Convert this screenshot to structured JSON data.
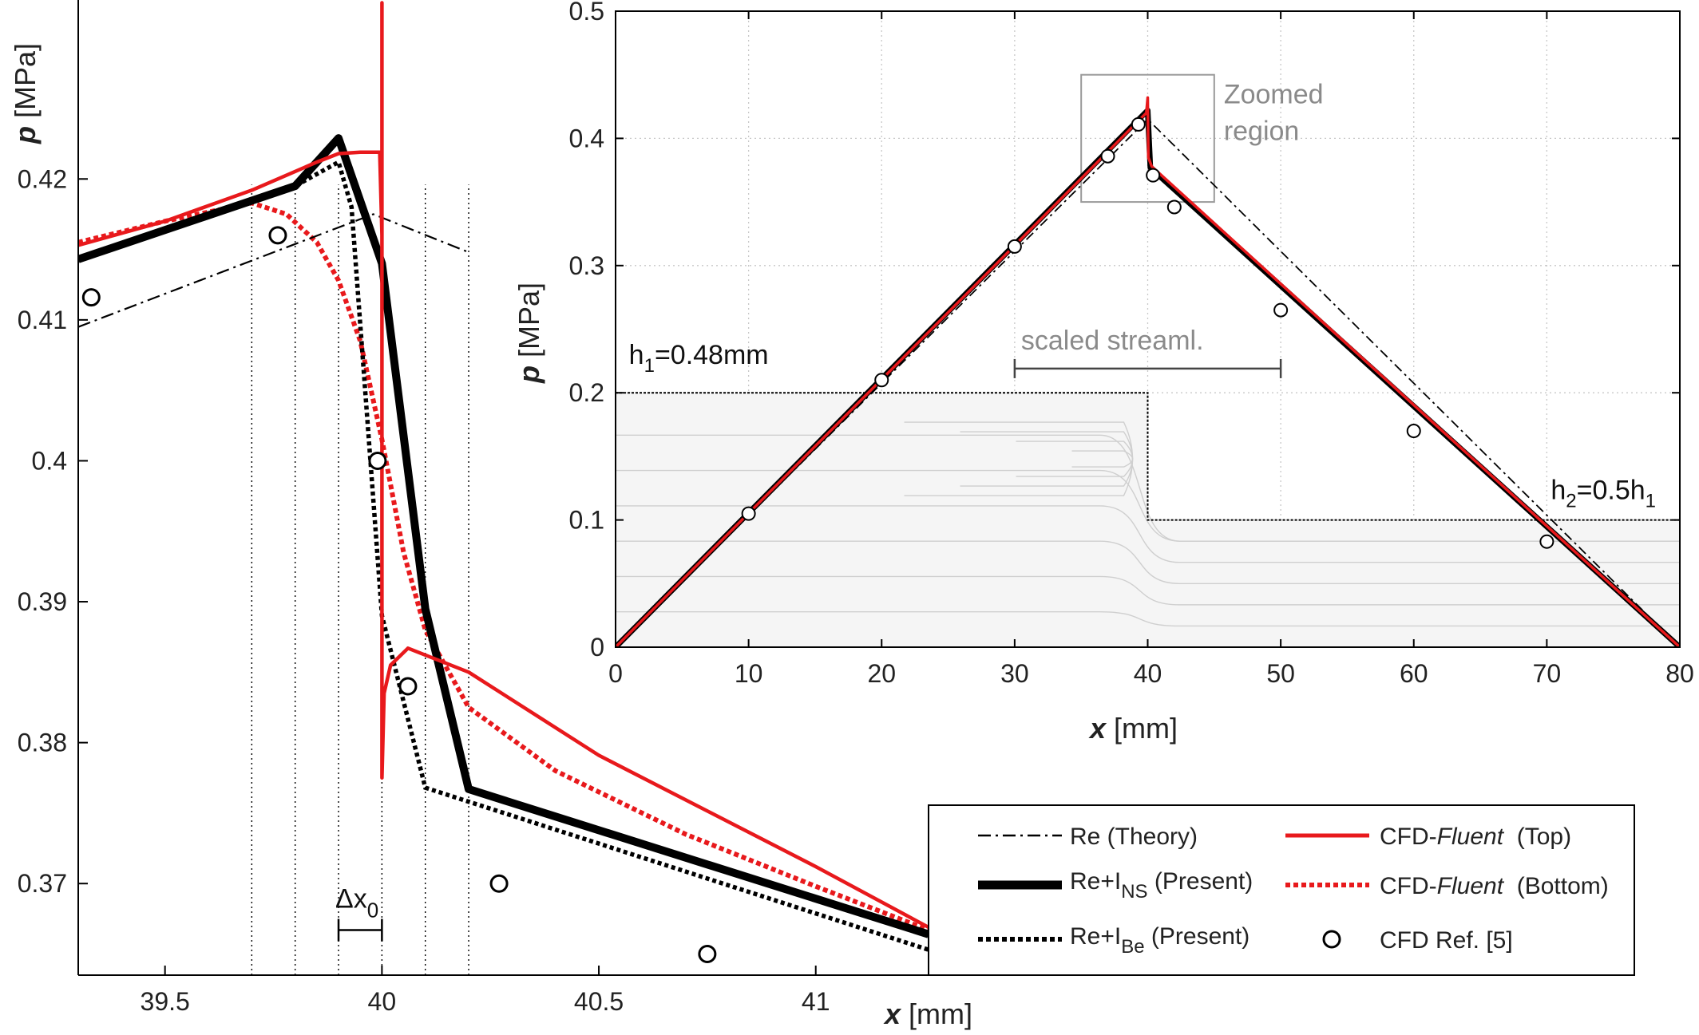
{
  "chart_data": [
    {
      "type": "line",
      "name": "main",
      "xlabel_var": "x",
      "xlabel_unit": " [mm]",
      "ylabel_var": "p",
      "ylabel_unit": " [MPa]",
      "xlim": [
        39.3,
        41.26
      ],
      "ylim": [
        0.3635,
        0.4327
      ],
      "xticks": [
        39.5,
        40,
        40.5,
        41
      ],
      "xtick_labels": [
        "39.5",
        "40",
        "40.5",
        "41"
      ],
      "yticks": [
        0.37,
        0.38,
        0.39,
        0.4,
        0.41,
        0.42
      ],
      "ytick_labels": [
        "0.37",
        "0.38",
        "0.39",
        "0.4",
        "0.41",
        "0.42"
      ],
      "dotted_vlines_x": [
        39.7,
        39.8,
        39.9,
        40.0,
        40.1,
        40.2
      ],
      "annotation": {
        "base": "Δx",
        "sub": "0",
        "from_x": 39.9,
        "to_x": 40.0,
        "y": 0.3667
      },
      "series": [
        {
          "key": "re_theory",
          "x": [
            39.3,
            39.98,
            40.2
          ],
          "y": [
            0.4095,
            0.4175,
            0.4148
          ]
        },
        {
          "key": "re_ins",
          "x": [
            39.3,
            39.8,
            39.9,
            40.0,
            40.1,
            40.2,
            41.26
          ],
          "y": [
            0.4143,
            0.4195,
            0.4229,
            0.414,
            0.3895,
            0.3767,
            0.3664
          ]
        },
        {
          "key": "re_ibe",
          "x": [
            39.3,
            39.8,
            39.9,
            39.93,
            40.0,
            40.1,
            41.26
          ],
          "y": [
            0.4143,
            0.4195,
            0.4212,
            0.418,
            0.389,
            0.3768,
            0.3653
          ]
        },
        {
          "key": "fluent_top",
          "x": [
            39.3,
            39.5,
            39.7,
            39.85,
            39.9,
            39.95,
            39.995,
            40.0,
            40.0,
            40.0,
            40.005,
            40.02,
            40.06,
            40.2,
            40.5,
            41.0,
            41.26
          ],
          "y": [
            0.4153,
            0.417,
            0.4192,
            0.4212,
            0.4218,
            0.4219,
            0.4219,
            0.416,
            0.4325,
            0.3775,
            0.3835,
            0.3855,
            0.3867,
            0.385,
            0.3791,
            0.3712,
            0.3669
          ]
        },
        {
          "key": "fluent_bottom",
          "x": [
            39.3,
            39.5,
            39.7,
            39.78,
            39.85,
            39.9,
            39.95,
            40.0,
            40.05,
            40.1,
            40.2,
            40.4,
            40.7,
            41.0,
            41.26
          ],
          "y": [
            0.4155,
            0.417,
            0.4183,
            0.4175,
            0.4155,
            0.4128,
            0.4085,
            0.4015,
            0.3935,
            0.388,
            0.3825,
            0.378,
            0.3735,
            0.3698,
            0.3667
          ]
        },
        {
          "key": "cfd_ref",
          "x": [
            39.33,
            39.76,
            39.99,
            40.06,
            40.27,
            40.75
          ],
          "y": [
            0.4116,
            0.416,
            0.4,
            0.384,
            0.37,
            0.365
          ]
        }
      ]
    },
    {
      "type": "line",
      "name": "inset",
      "xlabel_var": "x",
      "xlabel_unit": " [mm]",
      "ylabel_var": "p",
      "ylabel_unit": " [MPa]",
      "xlim": [
        0,
        80
      ],
      "ylim": [
        0,
        0.5
      ],
      "xticks": [
        0,
        10,
        20,
        30,
        40,
        50,
        60,
        70,
        80
      ],
      "xtick_labels": [
        "0",
        "10",
        "20",
        "30",
        "40",
        "50",
        "60",
        "70",
        "80"
      ],
      "yticks": [
        0,
        0.1,
        0.2,
        0.3,
        0.4,
        0.5
      ],
      "ytick_labels": [
        "0",
        "0.1",
        "0.2",
        "0.3",
        "0.4",
        "0.5"
      ],
      "grid": true,
      "zoom_box": {
        "x": [
          35,
          45
        ],
        "y": [
          0.35,
          0.45
        ],
        "label_line1": "Zoomed",
        "label_line2": "region"
      },
      "streamline_bar": {
        "x": [
          30,
          50
        ],
        "y": 0.219,
        "label": "scaled streaml."
      },
      "channel_top": {
        "x": [
          0,
          40,
          40,
          80
        ],
        "y": [
          0.2,
          0.2,
          0.1,
          0.1
        ]
      },
      "h1_label": {
        "base": "h",
        "sub": "1",
        "rest": "=0.48mm"
      },
      "h2_label": {
        "base": "h",
        "sub": "2",
        "mid": "=0.5h",
        "sub2": "1"
      },
      "series": [
        {
          "key": "re_theory",
          "x": [
            0,
            40,
            80
          ],
          "y": [
            0,
            0.415,
            0
          ]
        },
        {
          "key": "re_ins",
          "x": [
            0,
            40,
            40.2,
            80
          ],
          "y": [
            0,
            0.422,
            0.377,
            0
          ]
        },
        {
          "key": "fluent_top",
          "x": [
            0,
            39.9,
            40.0,
            40.05,
            40.3,
            80
          ],
          "y": [
            0,
            0.42,
            0.432,
            0.385,
            0.378,
            0
          ]
        },
        {
          "key": "cfd_ref",
          "x": [
            10,
            20,
            30,
            37,
            39.3,
            40.4,
            42,
            50,
            60,
            70
          ],
          "y": [
            0.105,
            0.21,
            0.315,
            0.386,
            0.411,
            0.371,
            0.346,
            0.265,
            0.17,
            0.083
          ]
        }
      ]
    }
  ],
  "legend": {
    "items": [
      {
        "key": "re_theory",
        "text": "Re (Theory)"
      },
      {
        "key": "re_ins",
        "base": "Re+I",
        "sub": "NS",
        "rest": " (Present)"
      },
      {
        "key": "re_ibe",
        "base": "Re+I",
        "sub": "Be",
        "rest": " (Present)"
      },
      {
        "key": "fluent_top",
        "pre": "CFD-",
        "it": "Fluent",
        "rest": "  (Top)"
      },
      {
        "key": "fluent_bottom",
        "pre": "CFD-",
        "it": "Fluent",
        "rest": "  (Bottom)"
      },
      {
        "key": "cfd_ref",
        "text": "CFD Ref. [5]"
      }
    ]
  },
  "colors": {
    "red": "#e8191c",
    "black": "#000000",
    "grid": "#c8c8c8",
    "gray_text": "#8a8a8a",
    "stream": "#cfcfcf",
    "stream_fill": "#f5f5f5"
  }
}
